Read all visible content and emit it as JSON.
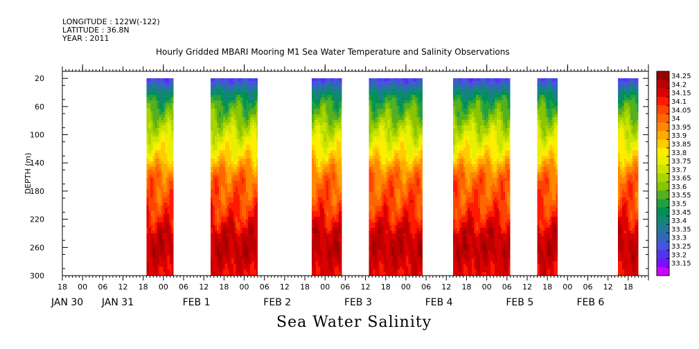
{
  "header": {
    "longitude": "LONGITUDE : 122W(-122)",
    "latitude": "LATITUDE : 36.8N",
    "year": "YEAR : 2011"
  },
  "chart_data": {
    "type": "heatmap",
    "title": "Hourly Gridded MBARI Mooring M1 Sea Water Temperature and Salinity Observations",
    "bottom_title": "Sea Water Salinity",
    "ylabel": "DEPTH (m)",
    "ylim": [
      300,
      10
    ],
    "y_ticks": [
      20,
      60,
      100,
      140,
      180,
      220,
      260,
      300
    ],
    "x_range_hours": [
      -6,
      168
    ],
    "x_hour_ticks": [
      {
        "h": -6,
        "label": "18"
      },
      {
        "h": 0,
        "label": "00"
      },
      {
        "h": 6,
        "label": "06"
      },
      {
        "h": 12,
        "label": "12"
      },
      {
        "h": 18,
        "label": "18"
      },
      {
        "h": 24,
        "label": "00"
      },
      {
        "h": 30,
        "label": "06"
      },
      {
        "h": 36,
        "label": "12"
      },
      {
        "h": 42,
        "label": "18"
      },
      {
        "h": 48,
        "label": "00"
      },
      {
        "h": 54,
        "label": "06"
      },
      {
        "h": 60,
        "label": "12"
      },
      {
        "h": 66,
        "label": "18"
      },
      {
        "h": 72,
        "label": "00"
      },
      {
        "h": 78,
        "label": "06"
      },
      {
        "h": 84,
        "label": "12"
      },
      {
        "h": 90,
        "label": "18"
      },
      {
        "h": 96,
        "label": "00"
      },
      {
        "h": 102,
        "label": "06"
      },
      {
        "h": 108,
        "label": "12"
      },
      {
        "h": 114,
        "label": "18"
      },
      {
        "h": 120,
        "label": "00"
      },
      {
        "h": 126,
        "label": "06"
      },
      {
        "h": 132,
        "label": "12"
      },
      {
        "h": 138,
        "label": "18"
      },
      {
        "h": 144,
        "label": "00"
      },
      {
        "h": 150,
        "label": "06"
      },
      {
        "h": 156,
        "label": "12"
      },
      {
        "h": 162,
        "label": "18"
      }
    ],
    "x_date_labels": [
      {
        "h": -6,
        "label": "JAN 30"
      },
      {
        "h": 9,
        "label": "JAN 31"
      },
      {
        "h": 33,
        "label": "FEB  1"
      },
      {
        "h": 57,
        "label": "FEB  2"
      },
      {
        "h": 81,
        "label": "FEB  3"
      },
      {
        "h": 105,
        "label": "FEB  4"
      },
      {
        "h": 129,
        "label": "FEB  5"
      },
      {
        "h": 150,
        "label": "FEB  6"
      }
    ],
    "data_segments": [
      {
        "start": 19,
        "end": 27
      },
      {
        "start": 38,
        "end": 52
      },
      {
        "start": 68,
        "end": 77
      },
      {
        "start": 85,
        "end": 101
      },
      {
        "start": 110,
        "end": 127
      },
      {
        "start": 135,
        "end": 141
      },
      {
        "start": 159,
        "end": 165
      }
    ],
    "profile_depths": [
      10,
      20,
      30,
      40,
      55,
      70,
      85,
      100,
      115,
      130,
      145,
      160,
      185,
      210,
      225,
      240,
      260,
      275,
      290,
      300
    ],
    "profile_values": [
      33.15,
      33.25,
      33.35,
      33.45,
      33.55,
      33.6,
      33.68,
      33.74,
      33.8,
      33.86,
      33.95,
      34.02,
      34.05,
      34.1,
      34.15,
      34.2,
      34.22,
      34.2,
      34.17,
      34.15
    ],
    "colorbar": {
      "levels": [
        "34.25",
        "34.2",
        "34.15",
        "34.1",
        "34.05",
        "34",
        "33.95",
        "33.9",
        "33.85",
        "33.8",
        "33.75",
        "33.7",
        "33.65",
        "33.6",
        "33.55",
        "33.5",
        "33.45",
        "33.4",
        "33.35",
        "33.3",
        "33.25",
        "33.2",
        "33.15"
      ],
      "colors": [
        "#990000",
        "#bb0000",
        "#dd0000",
        "#ff1a00",
        "#ff4400",
        "#ff6600",
        "#ff8800",
        "#ffaa00",
        "#ffcc00",
        "#ffee00",
        "#e8ef00",
        "#cce300",
        "#a8d400",
        "#88c400",
        "#55b020",
        "#22a040",
        "#009055",
        "#118877",
        "#227799",
        "#3366bb",
        "#4455dd",
        "#5533ee",
        "#7711ff",
        "#cc00ff"
      ]
    }
  }
}
